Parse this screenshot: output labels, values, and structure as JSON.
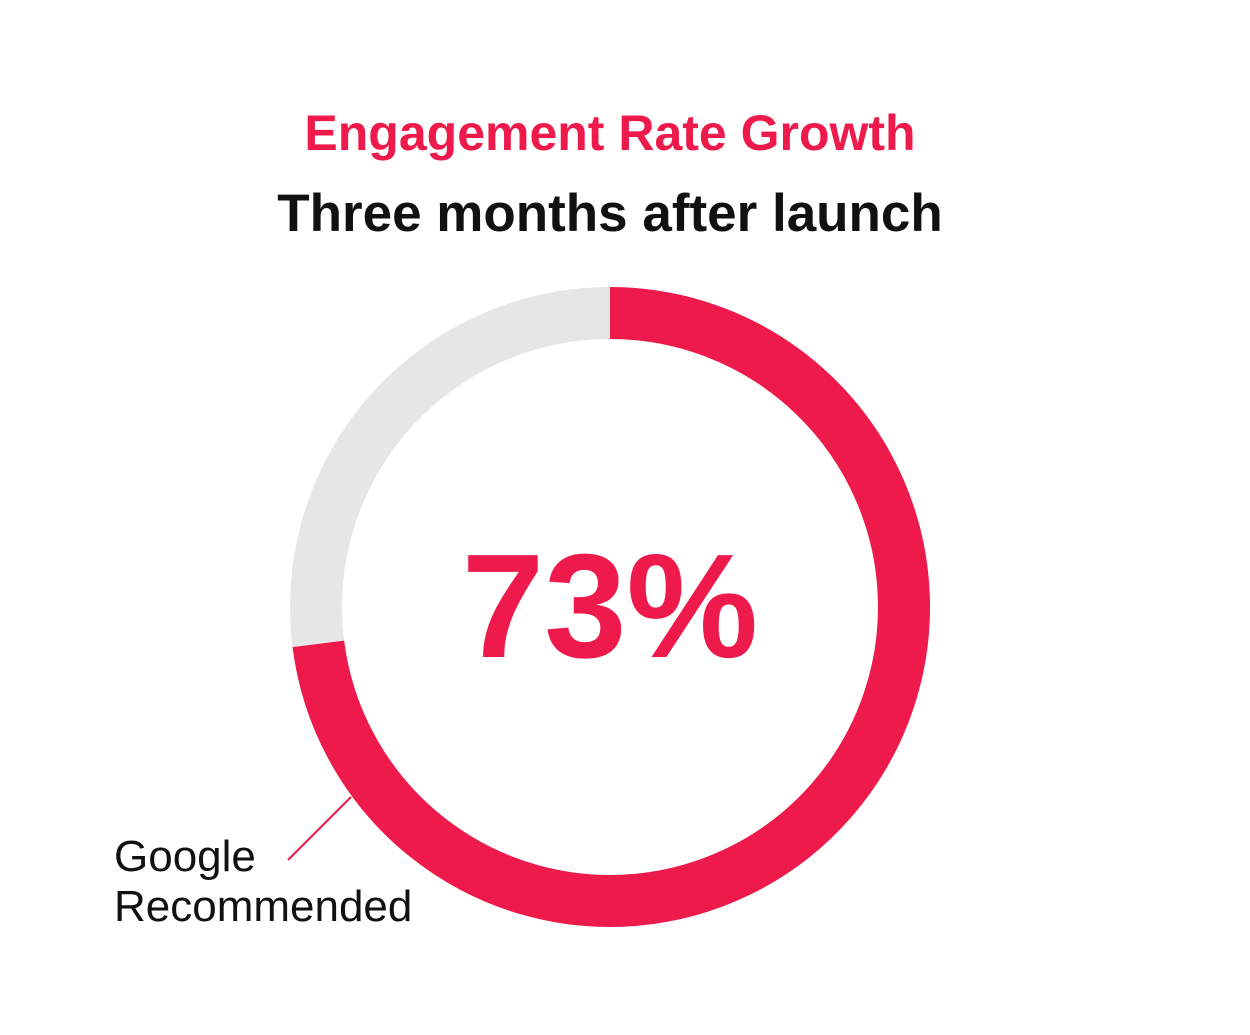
{
  "chart_data": {
    "type": "pie",
    "title": "Engagement Rate Growth",
    "subtitle": "Three months after launch",
    "center_label": "73%",
    "value": 73,
    "max": 100,
    "colors": {
      "filled": "#ee1a4c",
      "remainder": "#e6e6e6"
    },
    "callout": {
      "line1": "Google",
      "line2": "Recommended"
    }
  }
}
